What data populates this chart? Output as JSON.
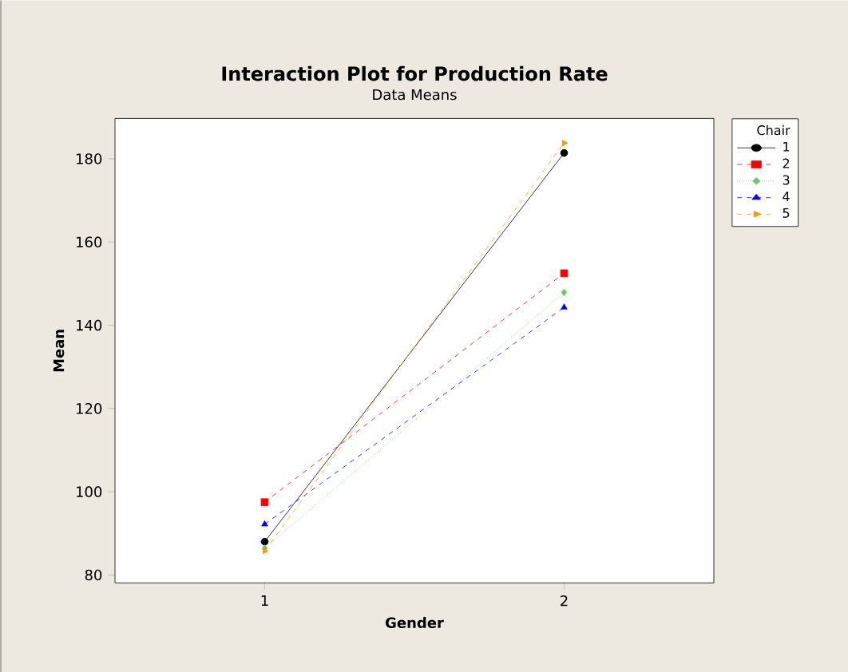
{
  "chart_data": {
    "type": "line",
    "title": "Interaction Plot for Production Rate",
    "subtitle": "Data Means",
    "xlabel": "Gender",
    "ylabel": "Mean",
    "legend_title": "Chair",
    "x": [
      1,
      2
    ],
    "xlim": [
      0.5,
      2.5
    ],
    "xticks": [
      1,
      2
    ],
    "ylim": [
      78.1,
      189.7
    ],
    "yticks": [
      80,
      100,
      120,
      140,
      160,
      180
    ],
    "grid": false,
    "legend": "right",
    "series": [
      {
        "name": "1",
        "color": "#000000",
        "values": [
          88,
          181.4
        ],
        "marker": "circle",
        "line_style": "solid"
      },
      {
        "name": "2",
        "color": "#ff0000",
        "values": [
          97.5,
          152.5
        ],
        "marker": "square",
        "line_style": "dashed"
      },
      {
        "name": "3",
        "color": "#66cc66",
        "values": [
          86.4,
          147.9
        ],
        "marker": "diamond",
        "line_style": "dotted"
      },
      {
        "name": "4",
        "color": "#0000ff",
        "values": [
          92.2,
          144.3
        ],
        "marker": "triangle",
        "line_style": "dashed"
      },
      {
        "name": "5",
        "color": "#ff9900",
        "values": [
          85.8,
          183.8
        ],
        "marker": "triangle right",
        "line_style": "dashed"
      }
    ]
  }
}
